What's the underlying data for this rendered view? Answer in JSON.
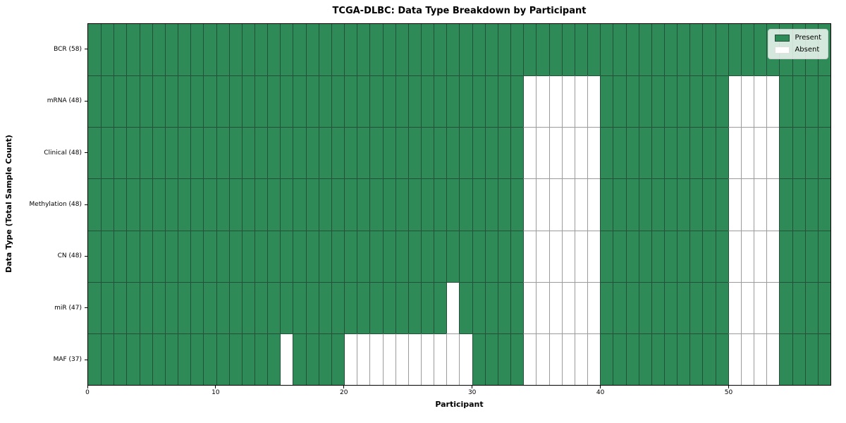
{
  "colors": {
    "present": "#2e8b57",
    "absent": "#ffffff",
    "edge_dark": "#24503a",
    "edge_light": "#9b9b9b",
    "spine": "#000000",
    "legend_bg": "rgba(255,255,255,0.8)",
    "legend_border": "#cfcfcf"
  },
  "chart_data": {
    "type": "heatmap",
    "title": "TCGA-DLBC: Data Type Breakdown by Participant",
    "xlabel": "Participant",
    "ylabel": "Data Type (Total Sample Count)",
    "x_range": [
      0,
      58
    ],
    "x_ticks": [
      0,
      10,
      20,
      30,
      40,
      50
    ],
    "n_participants": 58,
    "legend_position": "upper right",
    "grid": true,
    "legend": [
      {
        "label": "Present",
        "color": "#2e8b57"
      },
      {
        "label": "Absent",
        "color": "#ffffff"
      }
    ],
    "rows": [
      {
        "label": "BCR (58)",
        "data_type": "BCR",
        "present_count": 58,
        "absent_participants": []
      },
      {
        "label": "mRNA (48)",
        "data_type": "mRNA",
        "present_count": 48,
        "absent_participants": [
          34,
          35,
          36,
          37,
          38,
          39,
          50,
          51,
          52,
          53
        ]
      },
      {
        "label": "Clinical (48)",
        "data_type": "Clinical",
        "present_count": 48,
        "absent_participants": [
          34,
          35,
          36,
          37,
          38,
          39,
          50,
          51,
          52,
          53
        ]
      },
      {
        "label": "Methylation (48)",
        "data_type": "Methylation",
        "present_count": 48,
        "absent_participants": [
          34,
          35,
          36,
          37,
          38,
          39,
          50,
          51,
          52,
          53
        ]
      },
      {
        "label": "CN (48)",
        "data_type": "CN",
        "present_count": 48,
        "absent_participants": [
          34,
          35,
          36,
          37,
          38,
          39,
          50,
          51,
          52,
          53
        ]
      },
      {
        "label": "miR (47)",
        "data_type": "miR",
        "present_count": 47,
        "absent_participants": [
          28,
          34,
          35,
          36,
          37,
          38,
          39,
          50,
          51,
          52,
          53
        ]
      },
      {
        "label": "MAF (37)",
        "data_type": "MAF",
        "present_count": 37,
        "absent_participants": [
          15,
          20,
          21,
          22,
          23,
          24,
          25,
          26,
          27,
          28,
          29,
          34,
          35,
          36,
          37,
          38,
          39,
          50,
          51,
          52,
          53
        ]
      }
    ]
  }
}
